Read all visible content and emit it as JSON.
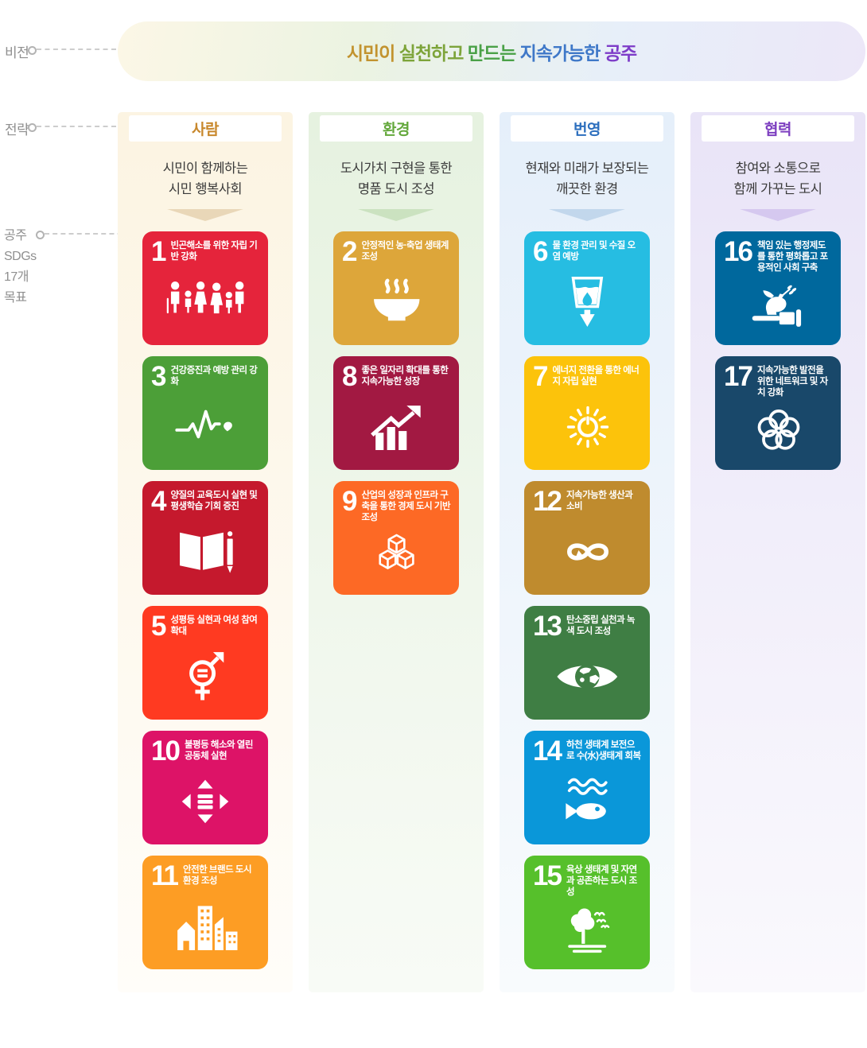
{
  "labels": {
    "vision": "비전",
    "strategy": "전략",
    "sdgs_lines": [
      "공주",
      "SDGs",
      "17개",
      "목표"
    ]
  },
  "vision": {
    "title_segments": [
      {
        "text": "시민이 ",
        "color": "#c2932f"
      },
      {
        "text": "실천하고 ",
        "color": "#7da43a"
      },
      {
        "text": "만드는 ",
        "color": "#4aa147"
      },
      {
        "text": "지속가능한 ",
        "color": "#3f78c8"
      },
      {
        "text": "공주",
        "color": "#7d3cc8"
      }
    ],
    "pill_gradient": [
      "#fcf7e6",
      "#ebf3e2",
      "#e7eff9",
      "#ece7f8"
    ]
  },
  "columns": [
    {
      "id": "people",
      "header": "사람",
      "header_color": "#c8882d",
      "bg_top": "#fcf4e2",
      "bg_bottom": "#fffdf9",
      "arrow_color": "#e9d7b8",
      "subtitle_lines": [
        "시민이 함께하는",
        "시민 행복사회"
      ],
      "goals": [
        {
          "num": "1",
          "title": "빈곤해소를 위한 자립 기반 강화",
          "color": "#e5243b",
          "icon": "family-icon"
        },
        {
          "num": "3",
          "title": "건강증진과 예방 관리 강화",
          "color": "#4c9f38",
          "icon": "heartbeat-icon"
        },
        {
          "num": "4",
          "title": "양질의 교육도시 실현 및 평생학습 기회 증진",
          "color": "#c5192d",
          "icon": "book-pencil-icon"
        },
        {
          "num": "5",
          "title": "성평등 실현과 여성 참여 확대",
          "color": "#ff3a21",
          "icon": "gender-equality-icon"
        },
        {
          "num": "10",
          "title": "불평등 해소와 열린 공동체 실현",
          "color": "#dd1367",
          "icon": "equality-arrows-icon"
        },
        {
          "num": "11",
          "title": "안전한 브랜드 도시 환경 조성",
          "color": "#fd9d24",
          "icon": "city-buildings-icon"
        }
      ]
    },
    {
      "id": "environment",
      "header": "환경",
      "header_color": "#64a83c",
      "bg_top": "#e6f2e0",
      "bg_bottom": "#f8fbf6",
      "arrow_color": "#cbe2c0",
      "subtitle_lines": [
        "도시가치 구현을 통한",
        "명품 도시 조성"
      ],
      "goals": [
        {
          "num": "2",
          "title": "안정적인 농·축업 생태계 조성",
          "color": "#dda63a",
          "icon": "bowl-steam-icon"
        },
        {
          "num": "8",
          "title": "좋은 일자리 확대를 통한 지속가능한 성장",
          "color": "#a21942",
          "icon": "growth-arrow-icon"
        },
        {
          "num": "9",
          "title": "산업의 성장과 인프라 구축을 통한 경제 도시 기반 조성",
          "color": "#fd6925",
          "icon": "cubes-icon"
        }
      ]
    },
    {
      "id": "prosperity",
      "header": "번영",
      "header_color": "#2d6fbe",
      "bg_top": "#e5effa",
      "bg_bottom": "#f8fbfd",
      "arrow_color": "#c2d7ec",
      "subtitle_lines": [
        "현재와 미래가 보장되는",
        "깨끗한 환경"
      ],
      "goals": [
        {
          "num": "6",
          "title": "물 환경 관리 및 수질 오염 예방",
          "color": "#26bde2",
          "icon": "water-glass-icon"
        },
        {
          "num": "7",
          "title": "에너지 전환을 통한 에너지 자립 실현",
          "color": "#fcc30b",
          "icon": "sun-power-icon"
        },
        {
          "num": "12",
          "title": "지속가능한 생산과 소비",
          "color": "#bf8b2e",
          "icon": "infinity-loop-icon"
        },
        {
          "num": "13",
          "title": "탄소중립 실천과 녹색 도시 조성",
          "color": "#3f7e44",
          "icon": "eye-globe-icon"
        },
        {
          "num": "14",
          "title": "하천 생태계 보전으로 수(水)생태계 회복",
          "color": "#0a97d9",
          "icon": "fish-waves-icon"
        },
        {
          "num": "15",
          "title": "육상 생태계 및 자연과 공존하는 도시 조성",
          "color": "#56c02b",
          "icon": "tree-birds-icon"
        }
      ]
    },
    {
      "id": "cooperation",
      "header": "협력",
      "header_color": "#7d3fc0",
      "bg_top": "#e9e4f7",
      "bg_bottom": "#faf9fd",
      "arrow_color": "#d5c8ef",
      "subtitle_lines": [
        "참여와 소통으로",
        "함께 가꾸는 도시"
      ],
      "goals": [
        {
          "num": "16",
          "title": "책임 있는 행정제도를 통한 평화롭고 포용적인 사회 구축",
          "color": "#00689d",
          "icon": "dove-gavel-icon"
        },
        {
          "num": "17",
          "title": "지속가능한 발전을 위한 네트워크 및 자치 강화",
          "color": "#19486a",
          "icon": "interlocking-rings-icon"
        }
      ]
    }
  ]
}
